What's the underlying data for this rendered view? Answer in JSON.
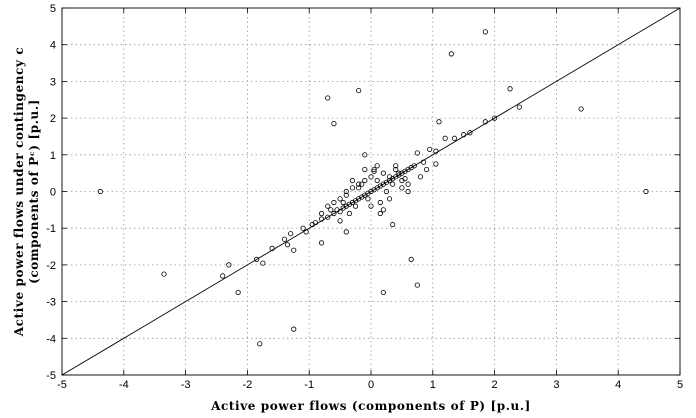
{
  "chart_data": {
    "type": "scatter",
    "title": "",
    "xlabel": "Active power flows (components of P) [p.u.]",
    "ylabel_line1": "Active power flows under contingency c",
    "ylabel_line2": "(components of Pᶜ) [p.u.]",
    "xlim": [
      -5,
      5
    ],
    "ylim": [
      -5,
      5
    ],
    "xticks": [
      -5,
      -4,
      -3,
      -2,
      -1,
      0,
      1,
      2,
      3,
      4,
      5
    ],
    "yticks": [
      -5,
      -4,
      -3,
      -2,
      -1,
      0,
      1,
      2,
      3,
      4,
      5
    ],
    "grid": true,
    "reference_line": {
      "from": [
        -5,
        -5
      ],
      "to": [
        5,
        5
      ]
    },
    "series": [
      {
        "marker": "circle-open",
        "x": [
          -4.38,
          4.45,
          -0.7,
          -0.2,
          -0.6,
          1.85,
          1.3,
          2.25,
          2.4,
          3.4,
          2.0,
          1.85,
          1.1,
          1.5,
          1.6,
          1.35,
          1.2,
          1.05,
          0.95,
          0.85,
          0.75,
          -3.35,
          -2.3,
          -2.15,
          -2.4,
          -1.85,
          -1.75,
          -1.25,
          -1.35,
          -1.6,
          -1.4,
          -1.3,
          -1.1,
          -1.05,
          -0.95,
          -0.9,
          -0.8,
          0.2,
          0.75,
          0.65,
          -1.25,
          -1.8,
          -0.1,
          0.05,
          -0.8,
          -0.4,
          0.35,
          1.05,
          0.15,
          -0.7,
          -0.6,
          -0.55,
          -0.5,
          -0.45,
          -0.4,
          -0.35,
          -0.3,
          -0.25,
          -0.2,
          -0.15,
          -0.1,
          -0.05,
          0.0,
          0.05,
          0.1,
          0.15,
          0.2,
          0.25,
          0.3,
          0.35,
          0.4,
          0.45,
          0.5,
          0.55,
          0.6,
          0.65,
          0.7,
          -0.6,
          -0.5,
          -0.4,
          -0.3,
          -0.2,
          -0.1,
          0.0,
          0.1,
          0.2,
          0.3,
          0.4,
          0.5,
          0.6,
          -0.65,
          -0.45,
          -0.35,
          -0.25,
          -0.15,
          -0.05,
          0.05,
          0.15,
          0.25,
          0.35,
          0.45,
          0.55,
          -0.3,
          -0.2,
          0.0,
          0.1,
          0.3,
          0.5,
          -0.1,
          0.2,
          0.4,
          -0.4,
          0.6,
          0.8,
          -0.5,
          -0.7,
          0.9,
          -0.8
        ],
        "y": [
          0.0,
          0.0,
          2.55,
          2.75,
          1.85,
          4.35,
          3.75,
          2.8,
          2.3,
          2.25,
          2.0,
          1.9,
          1.9,
          1.55,
          1.6,
          1.45,
          1.45,
          1.1,
          1.15,
          0.8,
          1.05,
          -2.25,
          -2.0,
          -2.75,
          -2.3,
          -1.85,
          -1.95,
          -1.6,
          -1.45,
          -1.55,
          -1.3,
          -1.15,
          -1.0,
          -1.1,
          -0.9,
          -0.85,
          -0.75,
          -2.75,
          -2.55,
          -1.85,
          -3.75,
          -4.15,
          1.0,
          0.55,
          -1.4,
          -1.1,
          -0.9,
          0.75,
          -0.6,
          -0.7,
          -0.6,
          -0.5,
          -0.55,
          -0.45,
          -0.4,
          -0.35,
          -0.3,
          -0.25,
          -0.2,
          -0.15,
          -0.1,
          -0.05,
          0.0,
          0.05,
          0.1,
          0.15,
          0.2,
          0.25,
          0.3,
          0.35,
          0.4,
          0.45,
          0.5,
          0.55,
          0.6,
          0.65,
          0.7,
          -0.3,
          -0.2,
          -0.1,
          0.1,
          0.2,
          0.3,
          0.4,
          0.3,
          0.5,
          0.4,
          0.6,
          0.3,
          0.2,
          -0.5,
          -0.3,
          -0.6,
          -0.4,
          0.2,
          -0.2,
          0.6,
          -0.3,
          0.0,
          0.2,
          0.5,
          0.35,
          0.3,
          0.1,
          -0.4,
          0.7,
          -0.2,
          0.1,
          0.6,
          -0.5,
          0.7,
          0.0,
          0.0,
          0.4,
          -0.8,
          -0.4,
          0.6,
          -0.6
        ]
      }
    ]
  }
}
